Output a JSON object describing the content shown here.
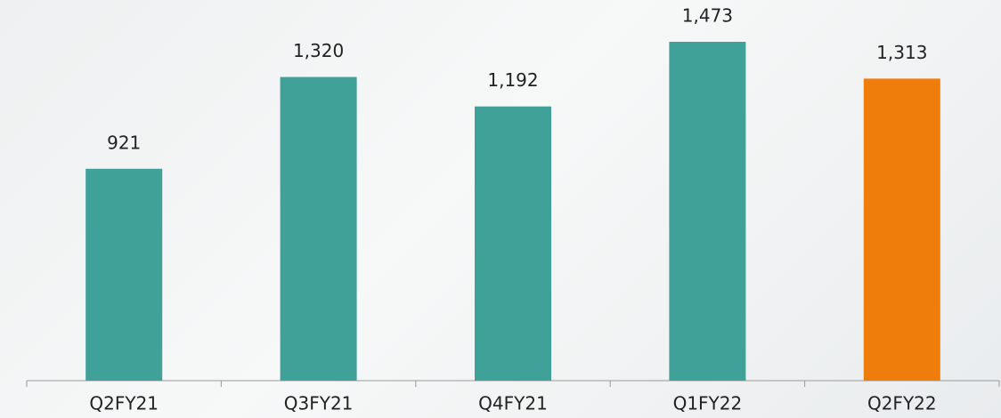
{
  "chart_data": {
    "type": "bar",
    "categories": [
      "Q2FY21",
      "Q3FY21",
      "Q4FY21",
      "Q1FY22",
      "Q2FY22"
    ],
    "values": [
      921,
      1320,
      1192,
      1473,
      1313
    ],
    "value_labels": [
      "921",
      "1,320",
      "1,192",
      "1,473",
      "1,313"
    ],
    "colors": [
      "#3fa197",
      "#3fa197",
      "#3fa197",
      "#3fa197",
      "#ee7d0c"
    ]
  }
}
